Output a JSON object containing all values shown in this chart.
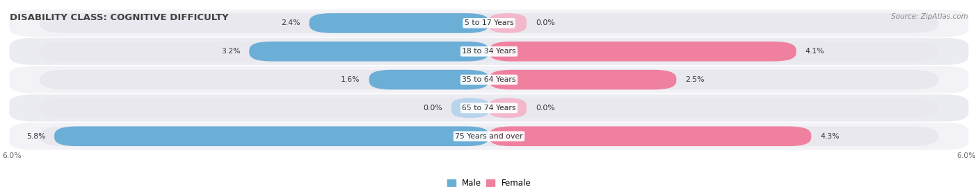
{
  "title": "DISABILITY CLASS: COGNITIVE DIFFICULTY",
  "source": "Source: ZipAtlas.com",
  "categories": [
    "5 to 17 Years",
    "18 to 34 Years",
    "35 to 64 Years",
    "65 to 74 Years",
    "75 Years and over"
  ],
  "male_values": [
    2.4,
    3.2,
    1.6,
    0.0,
    5.8
  ],
  "female_values": [
    0.0,
    4.1,
    2.5,
    0.0,
    4.3
  ],
  "max_val": 6.0,
  "male_color": "#6baed6",
  "female_color": "#f080a0",
  "male_color_light": "#b8d4eb",
  "female_color_light": "#f4b8cc",
  "bar_bg_color": "#e8e8ee",
  "row_bg_even": "#f0f0f5",
  "row_bg_odd": "#e8e8f0"
}
